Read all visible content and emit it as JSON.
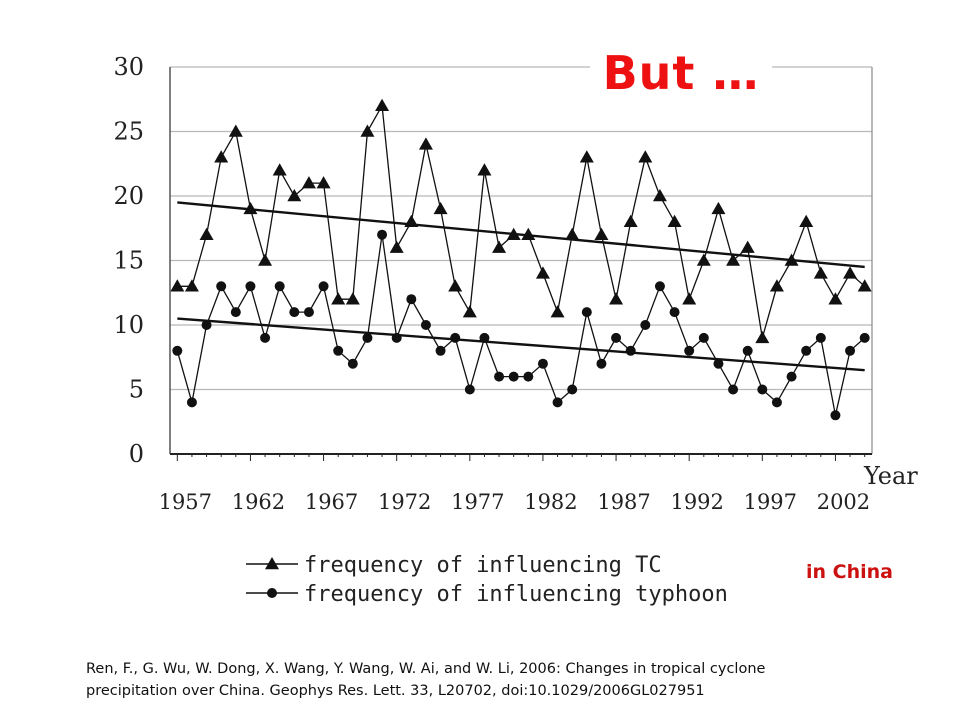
{
  "headline": "But …",
  "region_note": "in China",
  "citation": {
    "line1": "Ren, F., G. Wu, W. Dong, X. Wang, Y. Wang, W. Ai, and W. Li, 2006: Changes in tropical cyclone",
    "line2": "precipitation over China. Geophys Res. Lett. 33, L20702, doi:10.1029/2006GL027951"
  },
  "chart_data": {
    "type": "line",
    "title": "",
    "xlabel": "Year",
    "ylabel": "",
    "xlim": [
      1956.5,
      2004.5
    ],
    "ylim": [
      0,
      30
    ],
    "yticks": [
      0,
      5,
      10,
      15,
      20,
      25,
      30
    ],
    "xticks": [
      1957,
      1962,
      1967,
      1972,
      1977,
      1982,
      1987,
      1992,
      1997,
      2002
    ],
    "grid": "horizontal",
    "legend_position": "bottom-center",
    "x": [
      1957,
      1958,
      1959,
      1960,
      1961,
      1962,
      1963,
      1964,
      1965,
      1966,
      1967,
      1968,
      1969,
      1970,
      1971,
      1972,
      1973,
      1974,
      1975,
      1976,
      1977,
      1978,
      1979,
      1980,
      1981,
      1982,
      1983,
      1984,
      1985,
      1986,
      1987,
      1988,
      1989,
      1990,
      1991,
      1992,
      1993,
      1994,
      1995,
      1996,
      1997,
      1998,
      1999,
      2000,
      2001,
      2002,
      2003,
      2004
    ],
    "series": [
      {
        "name": "frequency of influencing TC",
        "marker": "triangle",
        "values": [
          13,
          13,
          17,
          23,
          25,
          19,
          15,
          22,
          20,
          21,
          21,
          12,
          12,
          25,
          27,
          16,
          18,
          24,
          19,
          13,
          11,
          22,
          16,
          17,
          17,
          14,
          11,
          17,
          23,
          17,
          12,
          18,
          23,
          20,
          18,
          12,
          15,
          19,
          15,
          16,
          9,
          13,
          15,
          18,
          14,
          12,
          14,
          13
        ],
        "trend": [
          19.5,
          14.5
        ]
      },
      {
        "name": "frequency of influencing typhoon",
        "marker": "circle",
        "values": [
          8,
          4,
          10,
          13,
          11,
          13,
          9,
          13,
          11,
          11,
          13,
          8,
          7,
          9,
          17,
          9,
          12,
          10,
          8,
          9,
          5,
          9,
          6,
          6,
          6,
          7,
          4,
          5,
          11,
          7,
          9,
          8,
          10,
          13,
          11,
          8,
          9,
          7,
          5,
          8,
          5,
          4,
          6,
          8,
          9,
          3,
          8,
          9
        ],
        "trend": [
          10.5,
          6.5
        ]
      }
    ]
  }
}
